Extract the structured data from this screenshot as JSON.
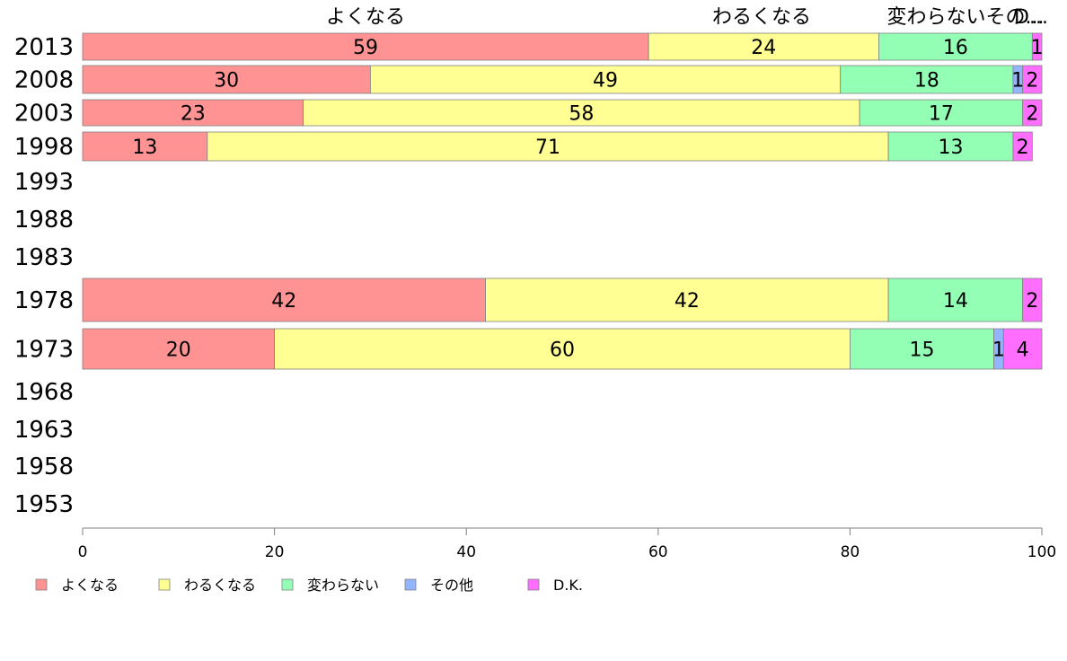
{
  "chart_data": {
    "type": "bar",
    "orientation": "horizontal",
    "stacked": true,
    "categories": [
      "2013",
      "2008",
      "2003",
      "1998",
      "1993",
      "1988",
      "1983",
      "1978",
      "1973",
      "1968",
      "1963",
      "1958",
      "1953"
    ],
    "series": [
      {
        "name": "よくなる",
        "color": "#ff9393",
        "values": [
          59,
          30,
          23,
          13,
          null,
          null,
          null,
          42,
          20,
          null,
          null,
          null,
          null
        ]
      },
      {
        "name": "わるくなる",
        "color": "#ffff93",
        "values": [
          24,
          49,
          58,
          71,
          null,
          null,
          null,
          42,
          60,
          null,
          null,
          null,
          null
        ]
      },
      {
        "name": "変わらない",
        "color": "#93ffb5",
        "values": [
          16,
          18,
          17,
          13,
          null,
          null,
          null,
          14,
          15,
          null,
          null,
          null,
          null
        ]
      },
      {
        "name": "その他",
        "color": "#93b5ff",
        "values": [
          0,
          1,
          0,
          0,
          null,
          null,
          null,
          0,
          1,
          null,
          null,
          null,
          null
        ]
      },
      {
        "name": "D.K.",
        "color": "#ff6eff",
        "values": [
          1,
          2,
          2,
          2,
          null,
          null,
          null,
          2,
          4,
          null,
          null,
          null,
          null
        ]
      }
    ],
    "top_labels": [
      "よくなる",
      "わるくなる",
      "変わらないその...",
      "D..."
    ],
    "xlim": [
      0,
      100
    ],
    "xticks": [
      "0",
      "20",
      "40",
      "60",
      "80",
      "100"
    ],
    "legend_position": "bottom-left",
    "grid": false
  }
}
